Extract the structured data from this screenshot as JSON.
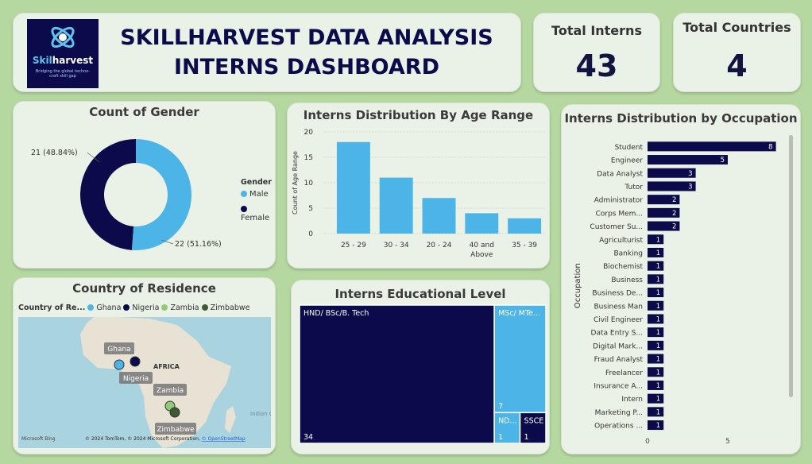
{
  "header": {
    "title_line1": "SKILLHARVEST DATA ANALYSIS",
    "title_line2": "INTERNS DASHBOARD",
    "logo_name_a": "Skil",
    "logo_name_b": "harvest",
    "logo_tagline": "Bridging the global techno-craft skill gap"
  },
  "kpis": {
    "interns_label": "Total Interns",
    "interns_value": "43",
    "countries_label": "Total Countries",
    "countries_value": "4"
  },
  "colors": {
    "dark": "#0b0a4a",
    "light": "#4db4e8",
    "zambia": "#8fcc72",
    "zimbabwe": "#3f5a33"
  },
  "gender": {
    "title": "Count of Gender",
    "legend_title": "Gender",
    "male_label": "Male",
    "female_label": "Female",
    "female_data_label": "21 (48.84%)",
    "male_data_label": "22 (51.16%)"
  },
  "map": {
    "title": "Country of Residence",
    "legend_title": "Country of Re...",
    "legend": [
      "Ghana",
      "Nigeria",
      "Zambia",
      "Zimbabwe"
    ],
    "labels": {
      "ghana": "Ghana",
      "nigeria": "Nigeria",
      "zambia": "Zambia",
      "zimbabwe": "Zimbabwe",
      "africa": "AFRICA",
      "ocean": "Indian Oc"
    },
    "bing": "Microsoft Bing",
    "copyright": "© 2024 TomTom, © 2024 Microsoft Corporation,",
    "osm": "© OpenStreetMap"
  },
  "age": {
    "title": "Interns Distribution By Age Range"
  },
  "education": {
    "title": "Interns Educational Level"
  },
  "occupation": {
    "title": "Interns Distribution by Occupation"
  },
  "chart_data": [
    {
      "type": "pie",
      "title": "Count of Gender",
      "categories": [
        "Male",
        "Female"
      ],
      "values": [
        22,
        21
      ],
      "percentages": [
        51.16,
        48.84
      ],
      "legend_title": "Gender",
      "legend_position": "right"
    },
    {
      "type": "bar",
      "title": "Interns Distribution By Age Range",
      "categories": [
        "25 - 29",
        "30 - 34",
        "20 - 24",
        "40 and Above",
        "35 - 39"
      ],
      "values": [
        18,
        11,
        7,
        4,
        3
      ],
      "xlabel": "",
      "ylabel": "Count of Age Range",
      "ylim": [
        0,
        20
      ],
      "yticks": [
        0,
        5,
        10,
        15,
        20
      ],
      "grid": true
    },
    {
      "type": "bar",
      "title": "Interns Educational Level",
      "categories": [
        "HND/ BSc/B. Tech",
        "MSc/ MTe...",
        "ND...",
        "SSCE"
      ],
      "values": [
        34,
        7,
        1,
        1
      ]
    },
    {
      "type": "bar",
      "title": "Interns Distribution by Occupation",
      "orientation": "horizontal",
      "ylabel": "Occupation",
      "categories": [
        "Student",
        "Engineer",
        "Data Analyst",
        "Tutor",
        "Administrator",
        "Corps Mem...",
        "Customer Su...",
        "Agriculturist",
        "Banking",
        "Biochemist",
        "Business",
        "Business De...",
        "Business Man",
        "Civil Engineer",
        "Data Entry S...",
        "Digital Mark...",
        "Fraud Analyst",
        "Freelancer",
        "Insurance A...",
        "Intern",
        "Marketing P...",
        "Operations ..."
      ],
      "values": [
        8,
        5,
        3,
        3,
        2,
        2,
        2,
        1,
        1,
        1,
        1,
        1,
        1,
        1,
        1,
        1,
        1,
        1,
        1,
        1,
        1,
        1
      ],
      "xticks": [
        0,
        5
      ]
    }
  ]
}
